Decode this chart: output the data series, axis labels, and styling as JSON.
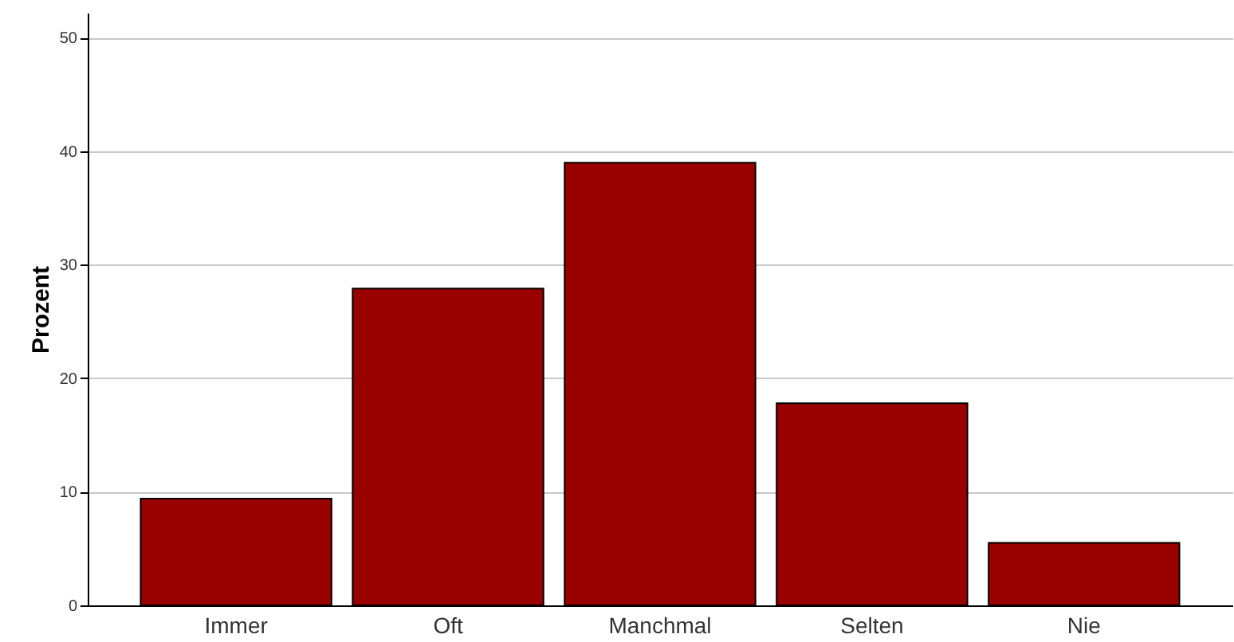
{
  "chart_data": {
    "type": "bar",
    "ylabel": "Prozent",
    "categories": [
      "Immer",
      "Oft",
      "Manchmal",
      "Selten",
      "Nie"
    ],
    "values": [
      9.4,
      27.9,
      39.0,
      17.8,
      5.5
    ],
    "color": "#990000",
    "ylim": [
      0,
      52.2
    ],
    "yticks": [
      0,
      10,
      20,
      30,
      40,
      50
    ],
    "grid": "y"
  }
}
